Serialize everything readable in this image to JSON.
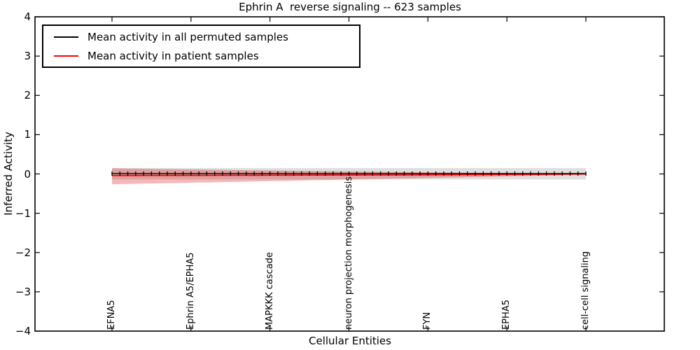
{
  "chart_data": {
    "type": "line",
    "title": "Ephrin A  reverse signaling -- 623 samples",
    "xlabel": "Cellular Entities",
    "ylabel": "Inferred Activity",
    "ylim": [
      -4,
      4
    ],
    "yticks": [
      4,
      3,
      2,
      1,
      0,
      -1,
      -2,
      -3,
      -4
    ],
    "grid": false,
    "legend_position": "upper left",
    "x_point_count": 61,
    "xtick_positions": [
      0,
      10,
      20,
      30,
      40,
      50,
      60
    ],
    "xtick_labels": [
      "EFNA5",
      "Ephrin A5/EPHA5",
      "MAPKKK cascade",
      "neuron projection morphogenesis",
      "FYN",
      "EPHA5",
      "cell-cell signaling"
    ],
    "series": [
      {
        "name": "Mean activity in all permuted samples",
        "color": "#000000",
        "marker": "|",
        "constant_value": 0.01,
        "band": {
          "upper_constant": 0.15,
          "lower_constant": -0.14,
          "color": "#808080",
          "alpha": 0.25
        }
      },
      {
        "name": "Mean activity in patient samples",
        "color": "#ff0000",
        "marker": "none",
        "values": [
          -0.04,
          -0.04,
          -0.039,
          -0.039,
          -0.038,
          -0.038,
          -0.038,
          -0.037,
          -0.037,
          -0.036,
          -0.036,
          -0.035,
          -0.035,
          -0.035,
          -0.034,
          -0.034,
          -0.033,
          -0.033,
          -0.032,
          -0.032,
          -0.031,
          -0.031,
          -0.03,
          -0.03,
          -0.029,
          -0.029,
          -0.028,
          -0.028,
          -0.027,
          -0.027,
          -0.026,
          -0.026,
          -0.025,
          -0.025,
          -0.024,
          -0.024,
          -0.023,
          -0.023,
          -0.022,
          -0.021,
          -0.021,
          -0.02,
          -0.019,
          -0.019,
          -0.018,
          -0.017,
          -0.017,
          -0.016,
          -0.015,
          -0.014,
          -0.014,
          -0.013,
          -0.012,
          -0.011,
          -0.01,
          -0.009,
          -0.008,
          -0.007,
          -0.005,
          -0.003,
          0.0
        ],
        "band": {
          "upper": [
            0.145,
            0.142,
            0.139,
            0.136,
            0.133,
            0.13,
            0.127,
            0.124,
            0.121,
            0.118,
            0.116,
            0.113,
            0.11,
            0.107,
            0.104,
            0.101,
            0.099,
            0.096,
            0.094,
            0.091,
            0.089,
            0.086,
            0.083,
            0.08,
            0.078,
            0.075,
            0.073,
            0.07,
            0.068,
            0.065,
            0.063,
            0.06,
            0.058,
            0.055,
            0.053,
            0.05,
            0.048,
            0.046,
            0.044,
            0.042,
            0.04,
            0.038,
            0.036,
            0.034,
            0.032,
            0.03,
            0.028,
            0.026,
            0.024,
            0.023,
            0.021,
            0.02,
            0.019,
            0.017,
            0.016,
            0.015,
            0.015,
            0.015,
            0.015,
            0.015,
            0.015
          ],
          "lower": [
            -0.262,
            -0.258,
            -0.254,
            -0.25,
            -0.246,
            -0.242,
            -0.238,
            -0.234,
            -0.231,
            -0.227,
            -0.223,
            -0.219,
            -0.215,
            -0.211,
            -0.208,
            -0.204,
            -0.2,
            -0.196,
            -0.191,
            -0.187,
            -0.183,
            -0.179,
            -0.175,
            -0.171,
            -0.167,
            -0.163,
            -0.159,
            -0.155,
            -0.151,
            -0.147,
            -0.143,
            -0.139,
            -0.135,
            -0.131,
            -0.127,
            -0.123,
            -0.119,
            -0.115,
            -0.111,
            -0.107,
            -0.103,
            -0.099,
            -0.095,
            -0.09,
            -0.086,
            -0.082,
            -0.078,
            -0.074,
            -0.07,
            -0.065,
            -0.061,
            -0.057,
            -0.052,
            -0.048,
            -0.043,
            -0.039,
            -0.034,
            -0.028,
            -0.023,
            -0.017,
            -0.012
          ],
          "color": "#dc1414",
          "alpha": 0.3
        }
      }
    ]
  },
  "colors": {
    "axes_frame": "#000000",
    "background": "#ffffff"
  }
}
